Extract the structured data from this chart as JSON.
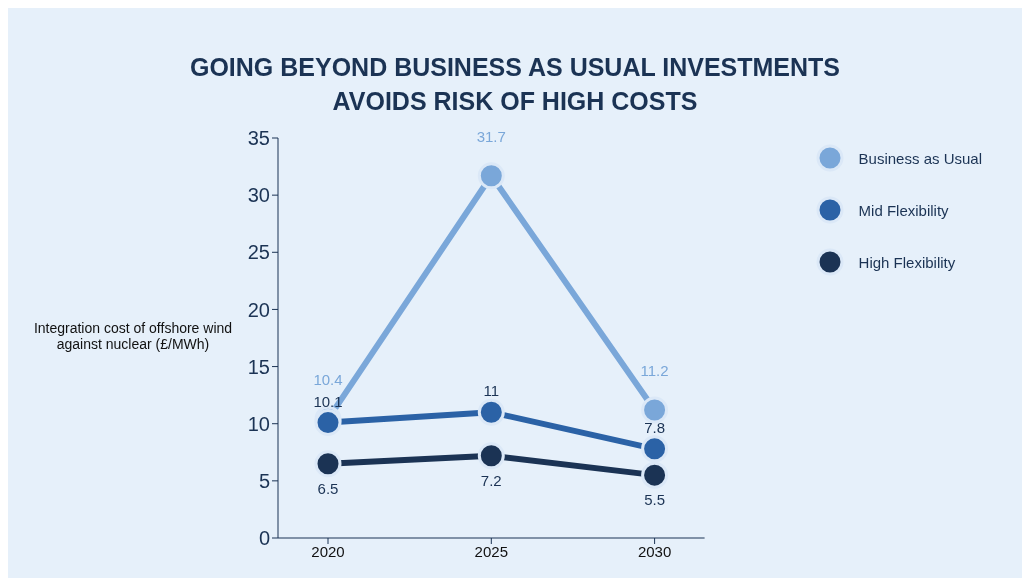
{
  "chart_data": {
    "type": "line",
    "title": "GOING BEYOND BUSINESS AS USUAL INVESTMENTS\nAVOIDS RISK OF HIGH COSTS",
    "ylabel": "Integration cost of offshore wind against nuclear (£/MWh)",
    "categories": [
      "2020",
      "2025",
      "2030"
    ],
    "series": [
      {
        "name": "Business as Usual",
        "color": "#7aa7d9",
        "values": [
          10.4,
          31.7,
          11.2
        ]
      },
      {
        "name": "Mid Flexibility",
        "color": "#2b62a6",
        "values": [
          10.1,
          11,
          7.8
        ]
      },
      {
        "name": "High Flexibility",
        "color": "#1b3354",
        "values": [
          6.5,
          7.2,
          5.5
        ]
      }
    ],
    "ylim": [
      0,
      35
    ],
    "yticks": [
      0,
      5,
      10,
      15,
      20,
      25,
      30,
      35
    ],
    "grid": false,
    "legend": "top right",
    "marker": "circle",
    "line_style": "solid",
    "data_labels": true
  }
}
